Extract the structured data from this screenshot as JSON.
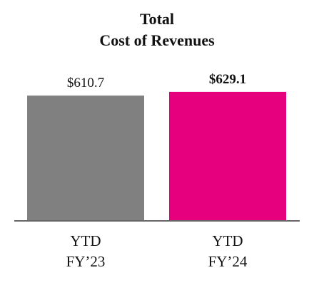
{
  "chart_data": {
    "type": "bar",
    "title": "Total",
    "subtitle": "Cost of Revenues",
    "categories": [
      [
        "YTD",
        "FY’23"
      ],
      [
        "YTD",
        "FY’24"
      ]
    ],
    "values": [
      610.7,
      629.1
    ],
    "value_labels": [
      "$610.7",
      "$629.1"
    ],
    "bar_colors": [
      "#808080",
      "#e6007e"
    ],
    "bold_value_label_index": 1,
    "ylim": [
      0,
      660
    ],
    "grid": false,
    "legend": "none"
  }
}
